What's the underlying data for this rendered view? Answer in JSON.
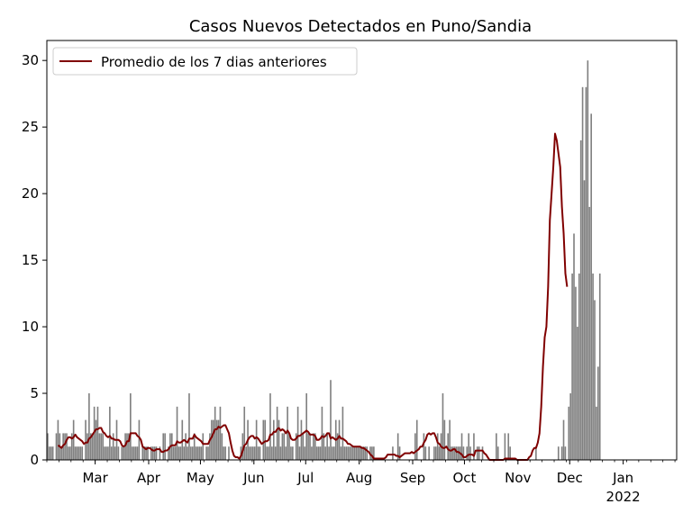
{
  "chart_data": {
    "type": "bar",
    "title": "Casos Nuevos Detectados en Puno/Sandia",
    "xlabel": "",
    "ylabel": "",
    "ylim": [
      0,
      31.5
    ],
    "yticks": [
      0,
      5,
      10,
      15,
      20,
      25,
      30
    ],
    "x_start": "2021-02-01",
    "x_end": "2022-01-31",
    "month_ticks": [
      {
        "date": "2021-03-01",
        "label": "Mar"
      },
      {
        "date": "2021-04-01",
        "label": "Apr"
      },
      {
        "date": "2021-05-01",
        "label": "May"
      },
      {
        "date": "2021-06-01",
        "label": "Jun"
      },
      {
        "date": "2021-07-01",
        "label": "Jul"
      },
      {
        "date": "2021-08-01",
        "label": "Aug"
      },
      {
        "date": "2021-09-01",
        "label": "Sep"
      },
      {
        "date": "2021-10-01",
        "label": "Oct"
      },
      {
        "date": "2021-11-01",
        "label": "Nov"
      },
      {
        "date": "2021-12-01",
        "label": "Dec"
      },
      {
        "date": "2022-01-01",
        "label": "Jan\n2022"
      }
    ],
    "series": [
      {
        "name": "Casos Nuevos",
        "kind": "bar",
        "color": "#808080",
        "values": [
          2,
          1,
          1,
          1,
          0,
          2,
          3,
          2,
          1,
          2,
          2,
          2,
          1,
          1,
          2,
          3,
          1,
          1,
          1,
          1,
          1,
          0,
          3,
          2,
          5,
          2,
          2,
          4,
          3,
          4,
          2,
          2,
          2,
          1,
          1,
          1,
          4,
          1,
          2,
          1,
          3,
          1,
          0,
          1,
          1,
          2,
          2,
          2,
          5,
          1,
          1,
          1,
          1,
          3,
          0,
          1,
          1,
          1,
          1,
          0,
          1,
          1,
          1,
          1,
          0,
          1,
          0,
          2,
          2,
          0,
          1,
          2,
          2,
          1,
          1,
          4,
          1,
          1,
          3,
          1,
          2,
          1,
          5,
          1,
          1,
          2,
          1,
          1,
          1,
          1,
          2,
          0,
          1,
          1,
          2,
          3,
          3,
          4,
          3,
          3,
          4,
          2,
          1,
          1,
          0,
          1,
          0,
          0,
          0,
          0,
          0,
          0,
          1,
          2,
          4,
          1,
          3,
          1,
          1,
          1,
          1,
          3,
          1,
          1,
          0,
          3,
          3,
          1,
          1,
          5,
          1,
          3,
          1,
          4,
          3,
          1,
          2,
          2,
          1,
          4,
          2,
          1,
          1,
          0,
          2,
          4,
          1,
          3,
          2,
          1,
          5,
          2,
          2,
          1,
          2,
          2,
          1,
          1,
          1,
          4,
          2,
          1,
          2,
          1,
          6,
          1,
          1,
          3,
          2,
          3,
          1,
          4,
          1,
          1,
          1,
          1,
          1,
          1,
          1,
          1,
          1,
          1,
          1,
          1,
          1,
          1,
          0,
          1,
          1,
          1,
          0,
          0,
          0,
          0,
          0,
          0,
          0,
          0,
          0,
          0,
          1,
          0,
          0,
          2,
          1,
          0,
          0,
          0,
          0,
          0,
          0,
          0,
          0,
          2,
          3,
          0,
          0,
          0,
          2,
          1,
          0,
          1,
          0,
          0,
          1,
          1,
          2,
          1,
          2,
          5,
          3,
          0,
          2,
          3,
          1,
          1,
          1,
          1,
          1,
          1,
          2,
          1,
          0,
          1,
          2,
          1,
          0,
          2,
          0,
          1,
          1,
          0,
          1,
          0,
          0,
          0,
          0,
          0,
          0,
          0,
          2,
          1,
          0,
          0,
          0,
          2,
          0,
          2,
          1,
          0,
          0,
          0,
          0,
          0,
          0,
          0,
          0,
          0,
          0,
          0,
          0,
          0,
          0,
          1,
          0,
          0,
          0,
          0,
          0,
          0,
          0,
          0,
          0,
          0,
          0,
          0,
          1,
          0,
          1,
          3,
          1,
          0,
          4,
          5,
          14,
          17,
          13,
          10,
          14,
          24,
          28,
          21,
          28,
          30,
          19,
          26,
          14,
          12,
          4,
          7,
          14
        ]
      },
      {
        "name": "Promedio de los 7 dias anteriores",
        "kind": "line",
        "color": "#800000",
        "values": [
          null,
          null,
          null,
          null,
          null,
          null,
          1.1,
          1.0,
          0.9,
          1.1,
          1.2,
          1.5,
          1.7,
          1.7,
          1.6,
          1.7,
          1.9,
          1.7,
          1.6,
          1.5,
          1.4,
          1.2,
          1.3,
          1.3,
          1.6,
          1.7,
          1.9,
          2.1,
          2.3,
          2.3,
          2.4,
          2.4,
          2.1,
          2.0,
          1.8,
          1.7,
          1.8,
          1.6,
          1.6,
          1.5,
          1.5,
          1.5,
          1.4,
          1.1,
          1.0,
          1.1,
          1.4,
          1.4,
          2.0,
          2.0,
          2.0,
          2.0,
          1.8,
          1.7,
          1.5,
          1.0,
          0.9,
          0.8,
          0.9,
          0.9,
          0.8,
          0.7,
          0.7,
          0.8,
          0.8,
          0.8,
          0.6,
          0.6,
          0.7,
          0.7,
          0.8,
          1.0,
          1.1,
          1.1,
          1.1,
          1.4,
          1.3,
          1.3,
          1.4,
          1.5,
          1.4,
          1.3,
          1.6,
          1.6,
          1.6,
          1.9,
          1.7,
          1.6,
          1.5,
          1.4,
          1.2,
          1.2,
          1.2,
          1.2,
          1.5,
          1.7,
          2.0,
          2.3,
          2.3,
          2.5,
          2.4,
          2.5,
          2.6,
          2.6,
          2.3,
          2.0,
          1.3,
          0.7,
          0.3,
          0.2,
          0.2,
          0.1,
          0.3,
          0.7,
          1.1,
          1.2,
          1.5,
          1.7,
          1.8,
          1.8,
          1.6,
          1.7,
          1.6,
          1.4,
          1.2,
          1.3,
          1.4,
          1.4,
          1.5,
          1.9,
          1.9,
          2.1,
          2.1,
          2.3,
          2.4,
          2.2,
          2.3,
          2.2,
          2.0,
          2.2,
          2.0,
          1.6,
          1.5,
          1.5,
          1.6,
          1.8,
          1.8,
          1.9,
          2.0,
          2.1,
          2.2,
          2.1,
          1.9,
          1.9,
          1.9,
          1.8,
          1.5,
          1.5,
          1.6,
          1.8,
          1.7,
          1.8,
          2.0,
          2.0,
          1.6,
          1.7,
          1.6,
          1.5,
          1.6,
          1.8,
          1.6,
          1.6,
          1.5,
          1.4,
          1.2,
          1.2,
          1.1,
          1.0,
          1.0,
          1.0,
          1.0,
          1.0,
          0.9,
          0.9,
          0.8,
          0.7,
          0.6,
          0.4,
          0.3,
          0.1,
          0.1,
          0.1,
          0.1,
          0.1,
          0.1,
          0.1,
          0.2,
          0.4,
          0.4,
          0.4,
          0.4,
          0.4,
          0.3,
          0.3,
          0.2,
          0.3,
          0.4,
          0.5,
          0.5,
          0.5,
          0.5,
          0.6,
          0.5,
          0.6,
          0.7,
          0.8,
          1.0,
          1.0,
          1.3,
          1.5,
          1.9,
          2.0,
          1.9,
          2.0,
          2.0,
          1.7,
          1.3,
          1.2,
          1.0,
          0.9,
          0.9,
          1.0,
          0.8,
          0.7,
          0.7,
          0.8,
          0.8,
          0.6,
          0.6,
          0.5,
          0.4,
          0.2,
          0.2,
          0.3,
          0.4,
          0.4,
          0.4,
          0.3,
          0.7,
          0.7,
          0.7,
          0.7,
          0.7,
          0.5,
          0.4,
          0.2,
          0.0,
          0.0,
          0.0,
          0.0,
          0.0,
          0.0,
          0.0,
          0.0,
          0.0,
          0.1,
          0.1,
          0.1,
          0.1,
          0.1,
          0.1,
          0.1,
          0.0,
          0.0,
          0.0,
          0.0,
          0.0,
          0.0,
          0.0,
          0.2,
          0.3,
          0.7,
          0.9,
          0.9,
          1.3,
          2.0,
          4.0,
          7.0,
          9.2,
          10.0,
          13.0,
          18.0,
          20.0,
          22.0,
          24.5,
          24.0,
          23.0,
          22.0,
          19.0,
          17.0,
          14.0,
          13.0
        ]
      }
    ],
    "legend": {
      "position": "top-left",
      "label": "Promedio de los 7 dias anteriores"
    },
    "grid": false
  }
}
